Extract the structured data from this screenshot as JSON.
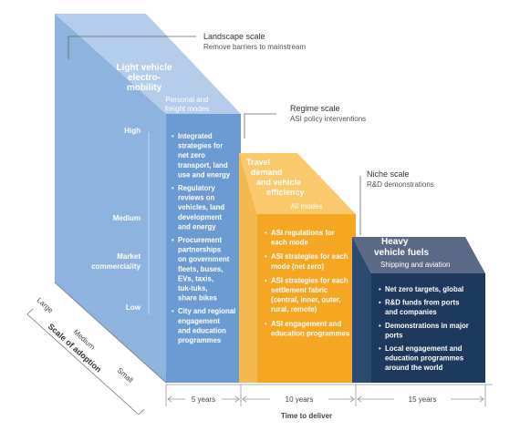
{
  "scales": {
    "landscape": {
      "title": "Landscape scale",
      "subtitle": "Remove barriers to mainstream"
    },
    "regime": {
      "title": "Regime scale",
      "subtitle": "ASI policy interventions"
    },
    "niche": {
      "title": "Niche scale",
      "subtitle": "R&D demonstrations"
    }
  },
  "blocks": {
    "light_vehicle": {
      "title_lines": [
        "Light vehicle",
        "electro-",
        "mobility"
      ],
      "sub_lines": [
        "Personal and",
        "freight modes"
      ],
      "bullets": [
        [
          "Integrated",
          "strategies for",
          "net zero",
          "transport, land",
          "use and energy"
        ],
        [
          "Regulatory",
          "reviews on",
          "vehicles, land",
          "development",
          "and energy"
        ],
        [
          "Procurement",
          "partnerships",
          "on government",
          "fleets, buses,",
          "EVs, taxis,",
          "tuk-tuks,",
          "share bikes"
        ],
        [
          "City and regional",
          "engagement",
          "and education",
          "programmes"
        ]
      ]
    },
    "travel_demand": {
      "title_lines": [
        "Travel",
        "demand",
        "and vehicle",
        "efficiency"
      ],
      "sub_lines": [
        "All modes"
      ],
      "bullets": [
        [
          "ASI regulations for",
          "each mode"
        ],
        [
          "ASI strategies for each",
          "mode (net zero)"
        ],
        [
          "ASI strategies for each",
          "settlement fabric",
          "(central, inner, outer,",
          "rural, remote)"
        ],
        [
          "ASI engagement and",
          "education programmes"
        ]
      ]
    },
    "heavy_vehicle": {
      "title_lines": [
        "Heavy",
        "vehicle fuels"
      ],
      "sub_lines": [
        "Shipping and aviation"
      ],
      "bullets": [
        [
          "Net zero targets, global"
        ],
        [
          "R&D funds from ports",
          "and companies"
        ],
        [
          "Demonstrations in major",
          "ports"
        ],
        [
          "Local engagement and",
          "education programmes",
          "around the world"
        ]
      ]
    }
  },
  "market_axis": {
    "high": "High",
    "medium": "Medium",
    "label_lines": [
      "Market",
      "commerciality"
    ],
    "low": "Low"
  },
  "adoption_axis": {
    "label": "Scale of adoption",
    "large": "Large",
    "medium": "Medium",
    "small": "Small"
  },
  "time_axis": {
    "label": "Time to deliver",
    "periods": [
      "5 years",
      "10 years",
      "15 years"
    ]
  },
  "colors": {
    "blue_front": "#6b9bd2",
    "blue_side": "#8fb3df",
    "blue_top": "#b3cdea",
    "orange_front": "#f5a623",
    "orange_top": "#f9c96b",
    "navy_front": "#1d3a5c",
    "navy_top": "#5a6a86"
  }
}
